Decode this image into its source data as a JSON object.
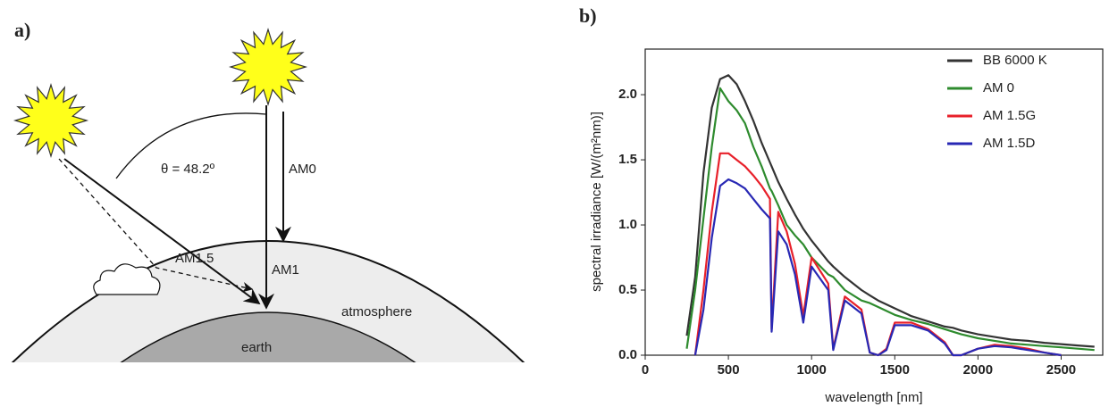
{
  "diagram": {
    "label": "a)",
    "angle": "θ = 48.2º",
    "am0": "AM0",
    "am1": "AM1",
    "am15": "AM1.5",
    "atmosphere": "atmosphere",
    "earth": "earth"
  },
  "chart_data": {
    "type": "line",
    "label": "b)",
    "x_label": "wavelength [nm]",
    "y_label": "spectral irradiance [W/(m²nm)]",
    "xlim": [
      0,
      2750
    ],
    "ylim": [
      0,
      2.35
    ],
    "xticks": [
      0,
      500,
      1000,
      1500,
      2000,
      2500
    ],
    "yticks": [
      {
        "value": 0,
        "label": "0.0"
      },
      0.5,
      {
        "value": 1,
        "label": "1.0"
      },
      1.5,
      {
        "value": 2,
        "label": "2.0"
      }
    ],
    "legend": "upper right",
    "x": [
      250,
      300,
      350,
      400,
      450,
      500,
      550,
      600,
      650,
      700,
      750,
      760,
      800,
      850,
      900,
      950,
      1000,
      1100,
      1130,
      1200,
      1300,
      1350,
      1400,
      1450,
      1500,
      1600,
      1700,
      1800,
      1850,
      1900,
      2000,
      2100,
      2200,
      2300,
      2400,
      2500,
      2600,
      2700
    ],
    "series": [
      {
        "name": "BB 6000 K",
        "color": "#333333",
        "values": [
          0.15,
          0.6,
          1.4,
          1.9,
          2.12,
          2.15,
          2.08,
          1.95,
          1.8,
          1.63,
          1.48,
          1.45,
          1.33,
          1.2,
          1.08,
          0.97,
          0.88,
          0.72,
          0.68,
          0.6,
          0.5,
          0.46,
          0.42,
          0.39,
          0.36,
          0.3,
          0.26,
          0.22,
          0.21,
          0.19,
          0.16,
          0.14,
          0.12,
          0.11,
          0.095,
          0.085,
          0.075,
          0.065
        ]
      },
      {
        "name": "AM 0",
        "color": "#2e8b2e",
        "values": [
          0.05,
          0.5,
          1.05,
          1.6,
          2.05,
          1.95,
          1.88,
          1.78,
          1.6,
          1.45,
          1.28,
          1.26,
          1.15,
          1.0,
          0.92,
          0.85,
          0.75,
          0.62,
          0.6,
          0.5,
          0.42,
          0.4,
          0.37,
          0.34,
          0.31,
          0.27,
          0.24,
          0.2,
          0.18,
          0.16,
          0.13,
          0.11,
          0.09,
          0.08,
          0.07,
          0.06,
          0.05,
          0.04
        ]
      },
      {
        "name": "AM 1.5G",
        "color": "#e8202a",
        "values": [
          null,
          0.0,
          0.5,
          1.1,
          1.55,
          1.55,
          1.5,
          1.45,
          1.38,
          1.3,
          1.2,
          0.2,
          1.1,
          0.95,
          0.7,
          0.3,
          0.75,
          0.55,
          0.05,
          0.45,
          0.35,
          0.02,
          0.0,
          0.05,
          0.25,
          0.25,
          0.2,
          0.1,
          0.0,
          0.0,
          0.05,
          0.08,
          0.07,
          0.05,
          0.02,
          0.0,
          null,
          null
        ]
      },
      {
        "name": "AM 1.5D",
        "color": "#2828b4",
        "values": [
          null,
          0.0,
          0.35,
          0.9,
          1.3,
          1.35,
          1.32,
          1.28,
          1.2,
          1.12,
          1.05,
          0.18,
          0.95,
          0.85,
          0.62,
          0.25,
          0.68,
          0.5,
          0.04,
          0.42,
          0.32,
          0.02,
          0.0,
          0.04,
          0.23,
          0.23,
          0.19,
          0.09,
          0.0,
          0.0,
          0.05,
          0.07,
          0.06,
          0.04,
          0.02,
          0.0,
          null,
          null
        ]
      }
    ]
  }
}
